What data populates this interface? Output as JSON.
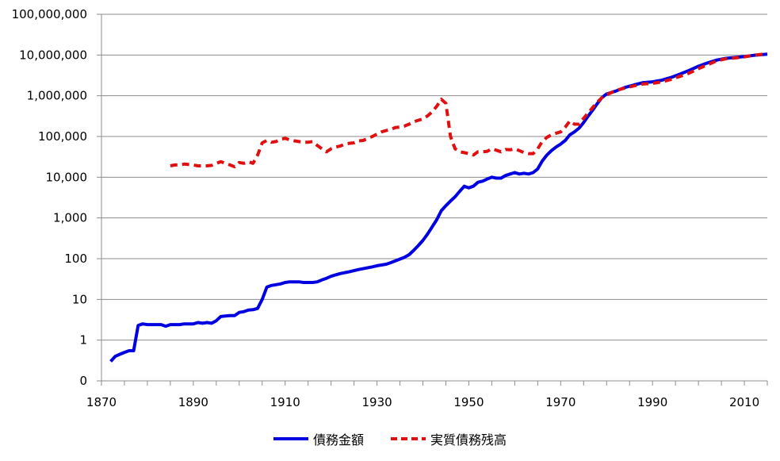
{
  "chart_data": {
    "type": "line",
    "yscale": "log",
    "grid": "horizontal",
    "legend_position": "bottom",
    "xlim": [
      1870,
      2015
    ],
    "x_ticks": [
      "1870",
      "1890",
      "1910",
      "1930",
      "1950",
      "1970",
      "1990",
      "2010"
    ],
    "y_ticks": [
      "0",
      "1",
      "10",
      "100",
      "1,000",
      "10,000",
      "100,000",
      "1,000,000",
      "10,000,000",
      "100,000,000"
    ],
    "series": [
      {
        "name": "債務金額",
        "color": "#0000E0",
        "style": "solid",
        "points": [
          [
            1872,
            0.3
          ],
          [
            1873,
            0.4
          ],
          [
            1874,
            0.45
          ],
          [
            1875,
            0.5
          ],
          [
            1876,
            0.55
          ],
          [
            1877,
            0.55
          ],
          [
            1878,
            2.3
          ],
          [
            1879,
            2.5
          ],
          [
            1880,
            2.4
          ],
          [
            1882,
            2.4
          ],
          [
            1883,
            2.4
          ],
          [
            1884,
            2.2
          ],
          [
            1885,
            2.4
          ],
          [
            1887,
            2.4
          ],
          [
            1888,
            2.5
          ],
          [
            1890,
            2.5
          ],
          [
            1891,
            2.7
          ],
          [
            1892,
            2.6
          ],
          [
            1893,
            2.7
          ],
          [
            1894,
            2.6
          ],
          [
            1895,
            3.0
          ],
          [
            1896,
            3.8
          ],
          [
            1897,
            3.9
          ],
          [
            1898,
            4.0
          ],
          [
            1899,
            4.0
          ],
          [
            1900,
            4.8
          ],
          [
            1901,
            5.0
          ],
          [
            1902,
            5.5
          ],
          [
            1903,
            5.6
          ],
          [
            1904,
            6.0
          ],
          [
            1905,
            10
          ],
          [
            1906,
            20
          ],
          [
            1907,
            22
          ],
          [
            1908,
            23
          ],
          [
            1909,
            24
          ],
          [
            1910,
            26
          ],
          [
            1911,
            27
          ],
          [
            1912,
            27
          ],
          [
            1913,
            27
          ],
          [
            1914,
            26
          ],
          [
            1915,
            26
          ],
          [
            1916,
            26
          ],
          [
            1917,
            27
          ],
          [
            1918,
            30
          ],
          [
            1919,
            33
          ],
          [
            1920,
            37
          ],
          [
            1921,
            40
          ],
          [
            1922,
            43
          ],
          [
            1924,
            48
          ],
          [
            1926,
            54
          ],
          [
            1928,
            60
          ],
          [
            1929,
            63
          ],
          [
            1930,
            67
          ],
          [
            1932,
            73
          ],
          [
            1933,
            80
          ],
          [
            1934,
            88
          ],
          [
            1935,
            98
          ],
          [
            1936,
            108
          ],
          [
            1937,
            125
          ],
          [
            1938,
            160
          ],
          [
            1939,
            210
          ],
          [
            1940,
            280
          ],
          [
            1941,
            400
          ],
          [
            1942,
            600
          ],
          [
            1943,
            900
          ],
          [
            1944,
            1500
          ],
          [
            1945,
            2000
          ],
          [
            1946,
            2600
          ],
          [
            1947,
            3300
          ],
          [
            1948,
            4500
          ],
          [
            1949,
            6000
          ],
          [
            1950,
            5500
          ],
          [
            1951,
            6000
          ],
          [
            1952,
            7500
          ],
          [
            1953,
            8000
          ],
          [
            1954,
            9000
          ],
          [
            1955,
            10000
          ],
          [
            1956,
            9500
          ],
          [
            1957,
            9500
          ],
          [
            1958,
            11000
          ],
          [
            1959,
            12000
          ],
          [
            1960,
            13000
          ],
          [
            1961,
            12000
          ],
          [
            1962,
            12500
          ],
          [
            1963,
            12000
          ],
          [
            1964,
            13000
          ],
          [
            1965,
            16000
          ],
          [
            1966,
            25000
          ],
          [
            1967,
            35000
          ],
          [
            1968,
            45000
          ],
          [
            1969,
            55000
          ],
          [
            1970,
            65000
          ],
          [
            1971,
            80000
          ],
          [
            1972,
            110000
          ],
          [
            1973,
            130000
          ],
          [
            1974,
            160000
          ],
          [
            1975,
            220000
          ],
          [
            1976,
            320000
          ],
          [
            1977,
            450000
          ],
          [
            1978,
            650000
          ],
          [
            1979,
            900000
          ],
          [
            1980,
            1100000
          ],
          [
            1982,
            1300000
          ],
          [
            1984,
            1600000
          ],
          [
            1986,
            1850000
          ],
          [
            1988,
            2100000
          ],
          [
            1990,
            2200000
          ],
          [
            1992,
            2400000
          ],
          [
            1994,
            2800000
          ],
          [
            1996,
            3400000
          ],
          [
            1998,
            4200000
          ],
          [
            2000,
            5300000
          ],
          [
            2002,
            6400000
          ],
          [
            2004,
            7500000
          ],
          [
            2006,
            8300000
          ],
          [
            2008,
            8700000
          ],
          [
            2010,
            9200000
          ],
          [
            2012,
            9800000
          ],
          [
            2015,
            10500000
          ]
        ]
      },
      {
        "name": "実質債務残高",
        "color": "#E01010",
        "style": "dashed",
        "points": [
          [
            1885,
            19000
          ],
          [
            1886,
            20000
          ],
          [
            1887,
            20000
          ],
          [
            1888,
            21000
          ],
          [
            1890,
            20000
          ],
          [
            1891,
            19000
          ],
          [
            1892,
            19000
          ],
          [
            1893,
            19000
          ],
          [
            1894,
            19500
          ],
          [
            1895,
            22000
          ],
          [
            1896,
            24000
          ],
          [
            1897,
            22000
          ],
          [
            1898,
            20000
          ],
          [
            1899,
            18000
          ],
          [
            1900,
            23000
          ],
          [
            1901,
            22000
          ],
          [
            1902,
            24000
          ],
          [
            1903,
            22000
          ],
          [
            1904,
            35000
          ],
          [
            1905,
            70000
          ],
          [
            1906,
            80000
          ],
          [
            1907,
            72000
          ],
          [
            1908,
            75000
          ],
          [
            1909,
            85000
          ],
          [
            1910,
            90000
          ],
          [
            1911,
            82000
          ],
          [
            1912,
            78000
          ],
          [
            1913,
            75000
          ],
          [
            1914,
            72000
          ],
          [
            1915,
            72000
          ],
          [
            1916,
            75000
          ],
          [
            1917,
            60000
          ],
          [
            1918,
            50000
          ],
          [
            1919,
            42000
          ],
          [
            1920,
            50000
          ],
          [
            1921,
            55000
          ],
          [
            1922,
            58000
          ],
          [
            1923,
            65000
          ],
          [
            1924,
            68000
          ],
          [
            1925,
            70000
          ],
          [
            1926,
            78000
          ],
          [
            1927,
            80000
          ],
          [
            1928,
            90000
          ],
          [
            1929,
            100000
          ],
          [
            1930,
            115000
          ],
          [
            1931,
            130000
          ],
          [
            1932,
            140000
          ],
          [
            1933,
            150000
          ],
          [
            1934,
            165000
          ],
          [
            1935,
            170000
          ],
          [
            1936,
            180000
          ],
          [
            1937,
            200000
          ],
          [
            1938,
            230000
          ],
          [
            1939,
            250000
          ],
          [
            1940,
            270000
          ],
          [
            1941,
            320000
          ],
          [
            1942,
            400000
          ],
          [
            1943,
            550000
          ],
          [
            1944,
            820000
          ],
          [
            1945,
            650000
          ],
          [
            1946,
            100000
          ],
          [
            1947,
            50000
          ],
          [
            1948,
            42000
          ],
          [
            1949,
            40000
          ],
          [
            1950,
            38000
          ],
          [
            1951,
            35000
          ],
          [
            1952,
            42000
          ],
          [
            1953,
            42000
          ],
          [
            1954,
            43000
          ],
          [
            1955,
            50000
          ],
          [
            1956,
            46000
          ],
          [
            1957,
            42000
          ],
          [
            1958,
            48000
          ],
          [
            1959,
            47000
          ],
          [
            1960,
            50000
          ],
          [
            1961,
            45000
          ],
          [
            1962,
            40000
          ],
          [
            1963,
            38000
          ],
          [
            1964,
            38000
          ],
          [
            1965,
            50000
          ],
          [
            1966,
            75000
          ],
          [
            1967,
            95000
          ],
          [
            1968,
            110000
          ],
          [
            1969,
            120000
          ],
          [
            1970,
            130000
          ],
          [
            1971,
            170000
          ],
          [
            1972,
            240000
          ],
          [
            1973,
            200000
          ],
          [
            1974,
            200000
          ],
          [
            1975,
            280000
          ],
          [
            1976,
            380000
          ],
          [
            1977,
            520000
          ],
          [
            1978,
            700000
          ],
          [
            1979,
            900000
          ],
          [
            1980,
            1050000
          ],
          [
            1982,
            1350000
          ],
          [
            1984,
            1550000
          ],
          [
            1986,
            1750000
          ],
          [
            1988,
            1950000
          ],
          [
            1990,
            2000000
          ],
          [
            1992,
            2200000
          ],
          [
            1994,
            2500000
          ],
          [
            1996,
            3000000
          ],
          [
            1998,
            3600000
          ],
          [
            2000,
            4600000
          ],
          [
            2002,
            5800000
          ],
          [
            2004,
            7200000
          ],
          [
            2006,
            8100000
          ],
          [
            2008,
            8500000
          ],
          [
            2010,
            9000000
          ],
          [
            2012,
            9900000
          ],
          [
            2015,
            10700000
          ]
        ]
      }
    ]
  }
}
